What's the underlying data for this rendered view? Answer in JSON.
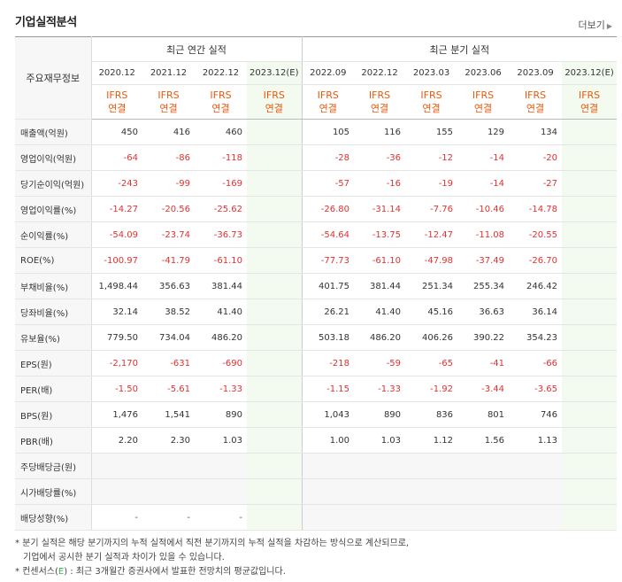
{
  "section": {
    "title": "기업실적분석",
    "more_label": "더보기"
  },
  "table": {
    "row_header_label": "주요재무정보",
    "group_annual": "최근 연간 실적",
    "group_quarter": "최근 분기 실적",
    "periods": [
      "2020.12",
      "2021.12",
      "2022.12",
      "2023.12(E)",
      "2022.09",
      "2022.12",
      "2023.03",
      "2023.06",
      "2023.09",
      "2023.12(E)"
    ],
    "standard_top": "IFRS",
    "standard_bottom": "연결",
    "rows": [
      {
        "label": "매출액(억원)",
        "values": [
          "450",
          "416",
          "460",
          "",
          "105",
          "116",
          "155",
          "129",
          "134",
          ""
        ]
      },
      {
        "label": "영업이익(억원)",
        "values": [
          "-64",
          "-86",
          "-118",
          "",
          "-28",
          "-36",
          "-12",
          "-14",
          "-20",
          ""
        ]
      },
      {
        "label": "당기순이익(억원)",
        "values": [
          "-243",
          "-99",
          "-169",
          "",
          "-57",
          "-16",
          "-19",
          "-14",
          "-27",
          ""
        ]
      },
      {
        "label": "영업이익률(%)",
        "values": [
          "-14.27",
          "-20.56",
          "-25.62",
          "",
          "-26.80",
          "-31.14",
          "-7.76",
          "-10.46",
          "-14.78",
          ""
        ]
      },
      {
        "label": "순이익률(%)",
        "values": [
          "-54.09",
          "-23.74",
          "-36.73",
          "",
          "-54.64",
          "-13.75",
          "-12.47",
          "-11.08",
          "-20.55",
          ""
        ]
      },
      {
        "label": "ROE(%)",
        "values": [
          "-100.97",
          "-41.79",
          "-61.10",
          "",
          "-77.73",
          "-61.10",
          "-47.98",
          "-37.49",
          "-26.70",
          ""
        ]
      },
      {
        "label": "부채비율(%)",
        "values": [
          "1,498.44",
          "356.63",
          "381.44",
          "",
          "401.75",
          "381.44",
          "251.34",
          "255.34",
          "246.42",
          ""
        ]
      },
      {
        "label": "당좌비율(%)",
        "values": [
          "32.14",
          "38.52",
          "41.40",
          "",
          "26.21",
          "41.40",
          "45.16",
          "36.63",
          "36.14",
          ""
        ]
      },
      {
        "label": "유보율(%)",
        "values": [
          "779.50",
          "734.04",
          "486.20",
          "",
          "503.18",
          "486.20",
          "406.26",
          "390.22",
          "354.23",
          ""
        ]
      },
      {
        "label": "EPS(원)",
        "values": [
          "-2,170",
          "-631",
          "-690",
          "",
          "-218",
          "-59",
          "-65",
          "-41",
          "-66",
          ""
        ]
      },
      {
        "label": "PER(배)",
        "values": [
          "-1.50",
          "-5.61",
          "-1.33",
          "",
          "-1.15",
          "-1.33",
          "-1.92",
          "-3.44",
          "-3.65",
          ""
        ]
      },
      {
        "label": "BPS(원)",
        "values": [
          "1,476",
          "1,541",
          "890",
          "",
          "1,043",
          "890",
          "836",
          "801",
          "746",
          ""
        ]
      },
      {
        "label": "PBR(배)",
        "values": [
          "2.20",
          "2.30",
          "1.03",
          "",
          "1.00",
          "1.03",
          "1.12",
          "1.56",
          "1.13",
          ""
        ]
      },
      {
        "label": "주당배당금(원)",
        "values": [
          "",
          "",
          "",
          "",
          "",
          "",
          "",
          "",
          "",
          ""
        ]
      },
      {
        "label": "시가배당률(%)",
        "values": [
          "",
          "",
          "",
          "",
          "",
          "",
          "",
          "",
          "",
          ""
        ]
      },
      {
        "label": "배당성향(%)",
        "values": [
          "-",
          "-",
          "-",
          "",
          "",
          "",
          "",
          "",
          "",
          ""
        ]
      }
    ]
  },
  "notes": {
    "line1": "* 분기 실적은 해당 분기까지의 누적 실적에서 직전 분기까지의 누적 실적을 차감하는 방식으로 계산되므로,",
    "line2": "기업에서 공시한 분기 실적과 차이가 있을 수 있습니다.",
    "line3_prefix": "* 컨센서스(",
    "line3_mark": "E",
    "line3_suffix": ") : 최근 3개월간 증권사에서 발표한 전망치의 평균값입니다."
  }
}
